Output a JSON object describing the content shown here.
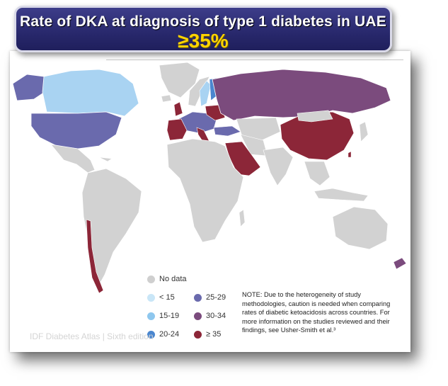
{
  "title": {
    "line": "Rate of DKA at diagnosis of type 1 diabetes  in UAE",
    "value": "≥35%"
  },
  "legend": {
    "items": [
      {
        "label": "No data",
        "color": "#cfcfcf"
      },
      {
        "label": "< 15",
        "color": "#c9e6f7"
      },
      {
        "label": "15-19",
        "color": "#8ec7ee"
      },
      {
        "label": "20-24",
        "color": "#4a86cf"
      },
      {
        "label": "25-29",
        "color": "#6a6aad"
      },
      {
        "label": "30-34",
        "color": "#7b4b7d"
      },
      {
        "label": "≥ 35",
        "color": "#8c2638"
      }
    ]
  },
  "note": "NOTE: Due to the heterogeneity of study methodologies, caution is needed when comparing rates of diabetic ketoacidosis across countries. For more information on the studies reviewed and their findings, see Usher-Smith et al.³",
  "watermark": "IDF Diabetes Atlas | Sixth edition",
  "regions": [
    {
      "name": "Canada",
      "category": "15-19"
    },
    {
      "name": "USA",
      "category": "25-29"
    },
    {
      "name": "Chile",
      "category": "≥ 35"
    },
    {
      "name": "Russia",
      "category": "30-34"
    },
    {
      "name": "China",
      "category": "≥ 35"
    },
    {
      "name": "Saudi Arabia",
      "category": "≥ 35"
    },
    {
      "name": "Finland",
      "category": "20-24"
    },
    {
      "name": "Sweden",
      "category": "15-19"
    },
    {
      "name": "Turkey",
      "category": "25-29"
    },
    {
      "name": "Taiwan",
      "category": "≥ 35"
    },
    {
      "name": "New Zealand",
      "category": "30-34"
    }
  ]
}
